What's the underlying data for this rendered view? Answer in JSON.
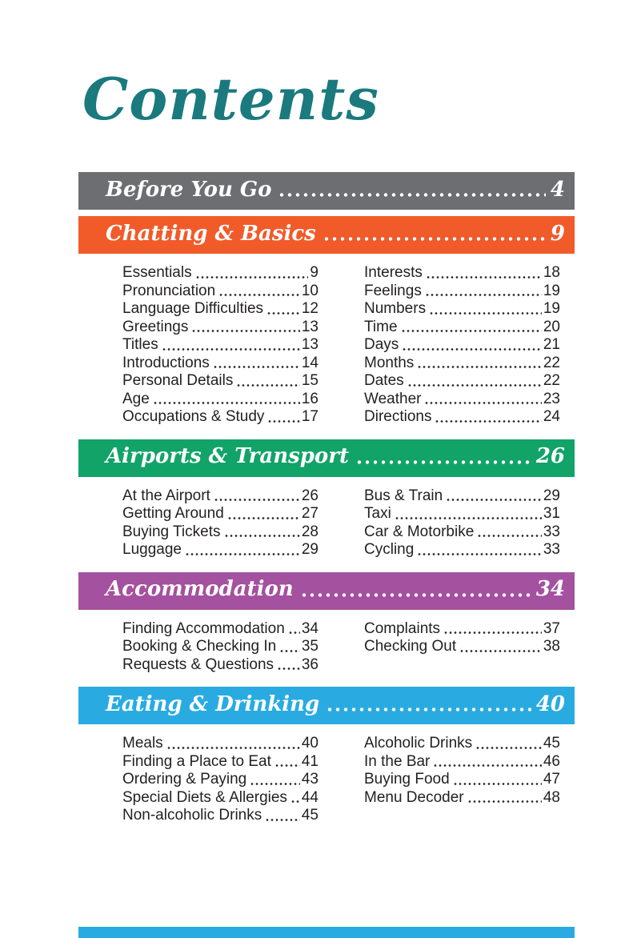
{
  "page": {
    "title": "Contents",
    "title_color": "#1a7a7e",
    "text_color": "#231f20"
  },
  "next_section_partial": {
    "color": "#29abe2"
  },
  "sections": [
    {
      "label": "Before You Go",
      "page": "4",
      "color": "#6d6e71",
      "entries_left": [],
      "entries_right": []
    },
    {
      "label": "Chatting & Basics",
      "page": "9",
      "color": "#f15b2a",
      "entries_left": [
        {
          "label": "Essentials",
          "page": "9"
        },
        {
          "label": "Pronunciation",
          "page": "10"
        },
        {
          "label": "Language Difficulties",
          "page": "12"
        },
        {
          "label": "Greetings",
          "page": "13"
        },
        {
          "label": "Titles",
          "page": "13"
        },
        {
          "label": "Introductions",
          "page": "14"
        },
        {
          "label": "Personal Details",
          "page": "15"
        },
        {
          "label": "Age",
          "page": "16"
        },
        {
          "label": "Occupations & Study",
          "page": "17"
        }
      ],
      "entries_right": [
        {
          "label": "Interests",
          "page": "18"
        },
        {
          "label": "Feelings",
          "page": "19"
        },
        {
          "label": "Numbers",
          "page": "19"
        },
        {
          "label": "Time",
          "page": "20"
        },
        {
          "label": "Days",
          "page": "21"
        },
        {
          "label": "Months",
          "page": "22"
        },
        {
          "label": "Dates",
          "page": "22"
        },
        {
          "label": "Weather",
          "page": "23"
        },
        {
          "label": "Directions",
          "page": "24"
        }
      ]
    },
    {
      "label": "Airports & Transport",
      "page": "26",
      "color": "#12a368",
      "entries_left": [
        {
          "label": "At the Airport",
          "page": "26"
        },
        {
          "label": "Getting Around",
          "page": "27"
        },
        {
          "label": "Buying Tickets",
          "page": "28"
        },
        {
          "label": "Luggage",
          "page": "29"
        }
      ],
      "entries_right": [
        {
          "label": "Bus & Train",
          "page": "29"
        },
        {
          "label": "Taxi",
          "page": "31"
        },
        {
          "label": "Car & Motorbike",
          "page": "33"
        },
        {
          "label": "Cycling",
          "page": "33"
        }
      ]
    },
    {
      "label": "Accommodation",
      "page": "34",
      "color": "#a4519f",
      "entries_left": [
        {
          "label": "Finding Accommodation",
          "page": "34"
        },
        {
          "label": "Booking & Checking In",
          "page": "35"
        },
        {
          "label": "Requests & Questions",
          "page": "36"
        }
      ],
      "entries_right": [
        {
          "label": "Complaints",
          "page": "37"
        },
        {
          "label": "Checking Out",
          "page": "38"
        }
      ]
    },
    {
      "label": "Eating & Drinking",
      "page": "40",
      "color": "#29abe2",
      "entries_left": [
        {
          "label": "Meals",
          "page": "40"
        },
        {
          "label": "Finding a Place to Eat",
          "page": "41"
        },
        {
          "label": "Ordering & Paying",
          "page": "43"
        },
        {
          "label": "Special Diets & Allergies",
          "page": "44"
        },
        {
          "label": "Non-alcoholic Drinks",
          "page": "45"
        }
      ],
      "entries_right": [
        {
          "label": "Alcoholic Drinks",
          "page": "45"
        },
        {
          "label": "In the Bar",
          "page": "46"
        },
        {
          "label": "Buying Food",
          "page": "47"
        },
        {
          "label": "Menu Decoder",
          "page": "48"
        }
      ]
    }
  ]
}
